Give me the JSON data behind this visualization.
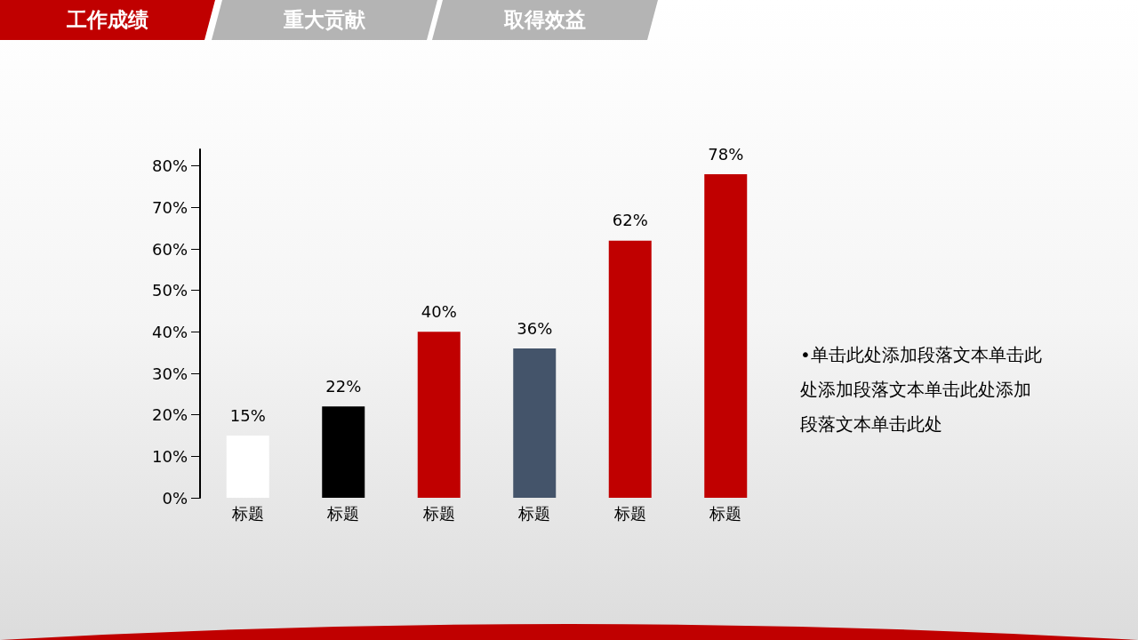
{
  "chart_data": {
    "type": "bar",
    "categories": [
      "标题",
      "标题",
      "标题",
      "标题",
      "标题",
      "标题"
    ],
    "values": [
      15,
      22,
      40,
      36,
      62,
      78
    ],
    "colors": [
      "#ffffff",
      "#000000",
      "#c00000",
      "#44546a",
      "#c00000",
      "#c00000"
    ],
    "value_labels": [
      "15%",
      "22%",
      "40%",
      "36%",
      "62%",
      "78%"
    ],
    "ylim": [
      0,
      84
    ],
    "yticks": [
      {
        "value": 0,
        "label": "0%"
      },
      {
        "value": 10,
        "label": "10%"
      },
      {
        "value": 20,
        "label": "20%"
      },
      {
        "value": 30,
        "label": "30%"
      },
      {
        "value": 40,
        "label": "40%"
      },
      {
        "value": 50,
        "label": "50%"
      },
      {
        "value": 60,
        "label": "60%"
      },
      {
        "value": 70,
        "label": "70%"
      },
      {
        "value": 80,
        "label": "80%"
      }
    ],
    "grid": false,
    "annotations": [
      "工作成绩",
      "重大贡献",
      "取得效益",
      "•单击此处添加段落文本单击此处添加段落文本单击此处添加段落文本单击此处"
    ]
  }
}
